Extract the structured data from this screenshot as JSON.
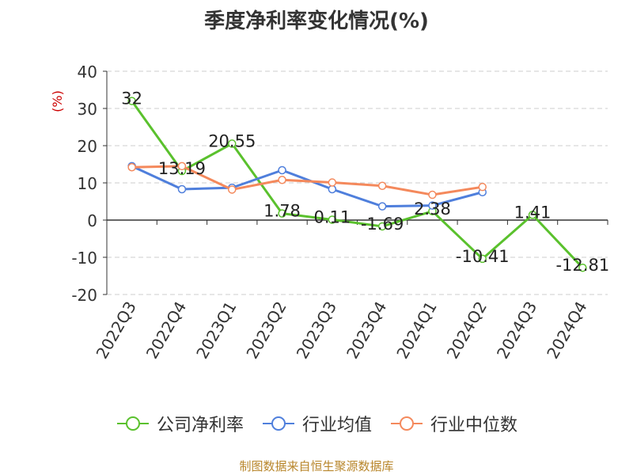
{
  "title": "季度净利率变化情况(%)",
  "source": "制图数据来自恒生聚源数据库",
  "colors": {
    "company": "#5ac12d",
    "industry_avg": "#4f7fdc",
    "industry_median": "#f4895c",
    "ylabel": "#cc0000",
    "source": "#b8862b"
  },
  "chart_data": {
    "type": "line",
    "title": "季度净利率变化情况(%)",
    "xlabel": "",
    "ylabel": "(%)",
    "ylim": [
      -20,
      40
    ],
    "yticks": [
      -20,
      -10,
      0,
      10,
      20,
      30,
      40
    ],
    "grid": true,
    "legend_position": "bottom",
    "categories": [
      "2022Q3",
      "2022Q4",
      "2023Q1",
      "2023Q2",
      "2023Q3",
      "2023Q4",
      "2024Q1",
      "2024Q2",
      "2024Q3",
      "2024Q4"
    ],
    "series": [
      {
        "name": "公司净利率",
        "color": "#5ac12d",
        "values": [
          32,
          13.19,
          20.55,
          1.78,
          0.11,
          -1.69,
          2.38,
          -10.41,
          1.41,
          -12.81
        ],
        "labels": [
          "32",
          "13.19",
          "20.55",
          "1.78",
          "0.11",
          "-1.69",
          "2.38",
          "-10.41",
          "1.41",
          "-12.81"
        ]
      },
      {
        "name": "行业均值",
        "color": "#4f7fdc",
        "values": [
          14.5,
          8.3,
          8.7,
          13.4,
          8.3,
          3.7,
          3.9,
          7.5,
          null,
          null
        ]
      },
      {
        "name": "行业中位数",
        "color": "#f4895c",
        "values": [
          14.2,
          14.5,
          8.2,
          10.8,
          10.1,
          9.2,
          6.8,
          8.9,
          null,
          null
        ]
      }
    ]
  }
}
